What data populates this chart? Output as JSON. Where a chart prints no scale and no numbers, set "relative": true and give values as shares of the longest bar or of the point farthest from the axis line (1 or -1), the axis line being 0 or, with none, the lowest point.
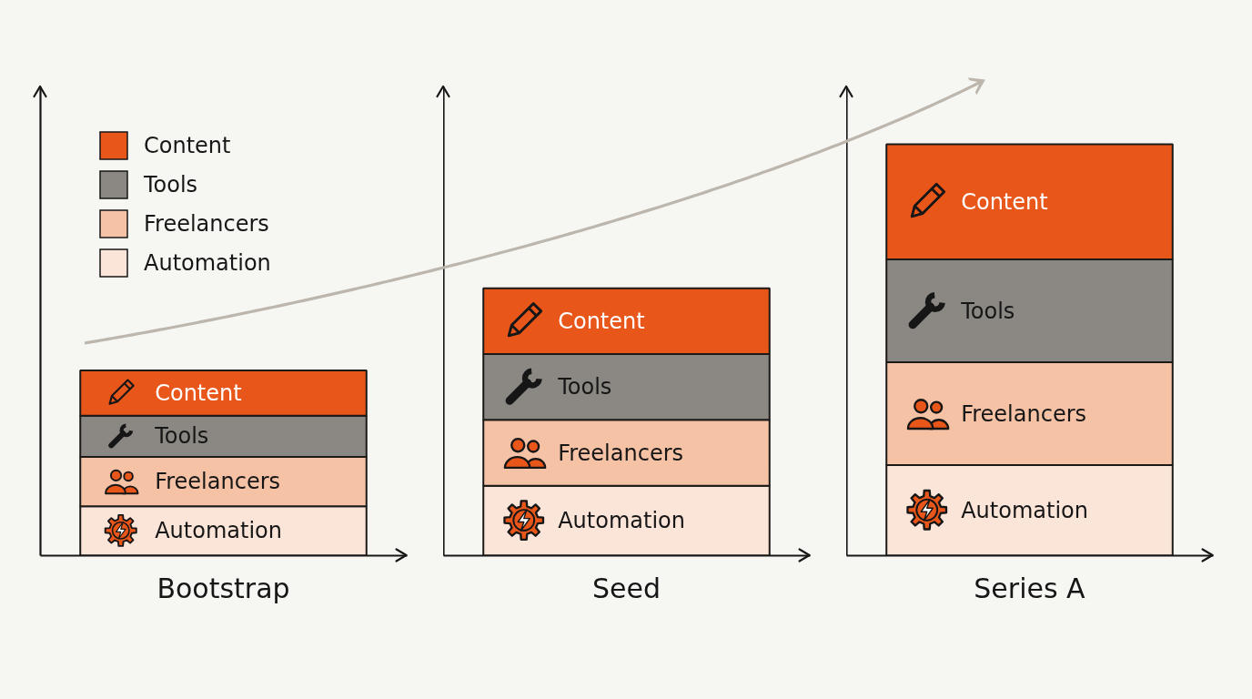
{
  "chart_data": {
    "type": "bar",
    "stacked": true,
    "relative": true,
    "categories": [
      "Bootstrap",
      "Seed",
      "Series A"
    ],
    "series": [
      {
        "name": "Automation",
        "color": "#fbe4d8",
        "values": [
          0.12,
          0.17,
          0.22
        ]
      },
      {
        "name": "Freelancers",
        "color": "#f5c2a6",
        "values": [
          0.12,
          0.16,
          0.25
        ]
      },
      {
        "name": "Tools",
        "color": "#8b8782",
        "values": [
          0.1,
          0.16,
          0.25
        ]
      },
      {
        "name": "Content",
        "color": "#e8561a",
        "values": [
          0.11,
          0.16,
          0.28
        ]
      }
    ],
    "legend": "top left"
  }
}
